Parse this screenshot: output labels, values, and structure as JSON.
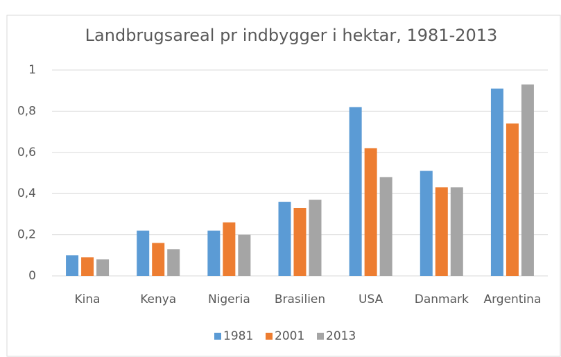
{
  "chart_data": {
    "type": "bar",
    "title": "Landbrugsareal pr indbygger i hektar, 1981-2013",
    "categories": [
      "Kina",
      "Kenya",
      "Nigeria",
      "Brasilien",
      "USA",
      "Danmark",
      "Argentina"
    ],
    "series": [
      {
        "name": "1981",
        "color": "#5b9bd5",
        "values": [
          0.1,
          0.22,
          0.22,
          0.36,
          0.82,
          0.51,
          0.91
        ]
      },
      {
        "name": "2001",
        "color": "#ed7d31",
        "values": [
          0.09,
          0.16,
          0.26,
          0.33,
          0.62,
          0.43,
          0.74
        ]
      },
      {
        "name": "2013",
        "color": "#a5a5a5",
        "values": [
          0.08,
          0.13,
          0.2,
          0.37,
          0.48,
          0.43,
          0.93
        ]
      }
    ],
    "ylim": [
      0,
      1
    ],
    "yticks": [
      0,
      {
        "value": 0.2,
        "label": "0,2"
      },
      {
        "value": 0.4,
        "label": "0,4"
      },
      {
        "value": 0.6,
        "label": "0,6"
      },
      {
        "value": 0.8,
        "label": "0,8"
      },
      1
    ],
    "grid": true,
    "legend": "bottom"
  }
}
